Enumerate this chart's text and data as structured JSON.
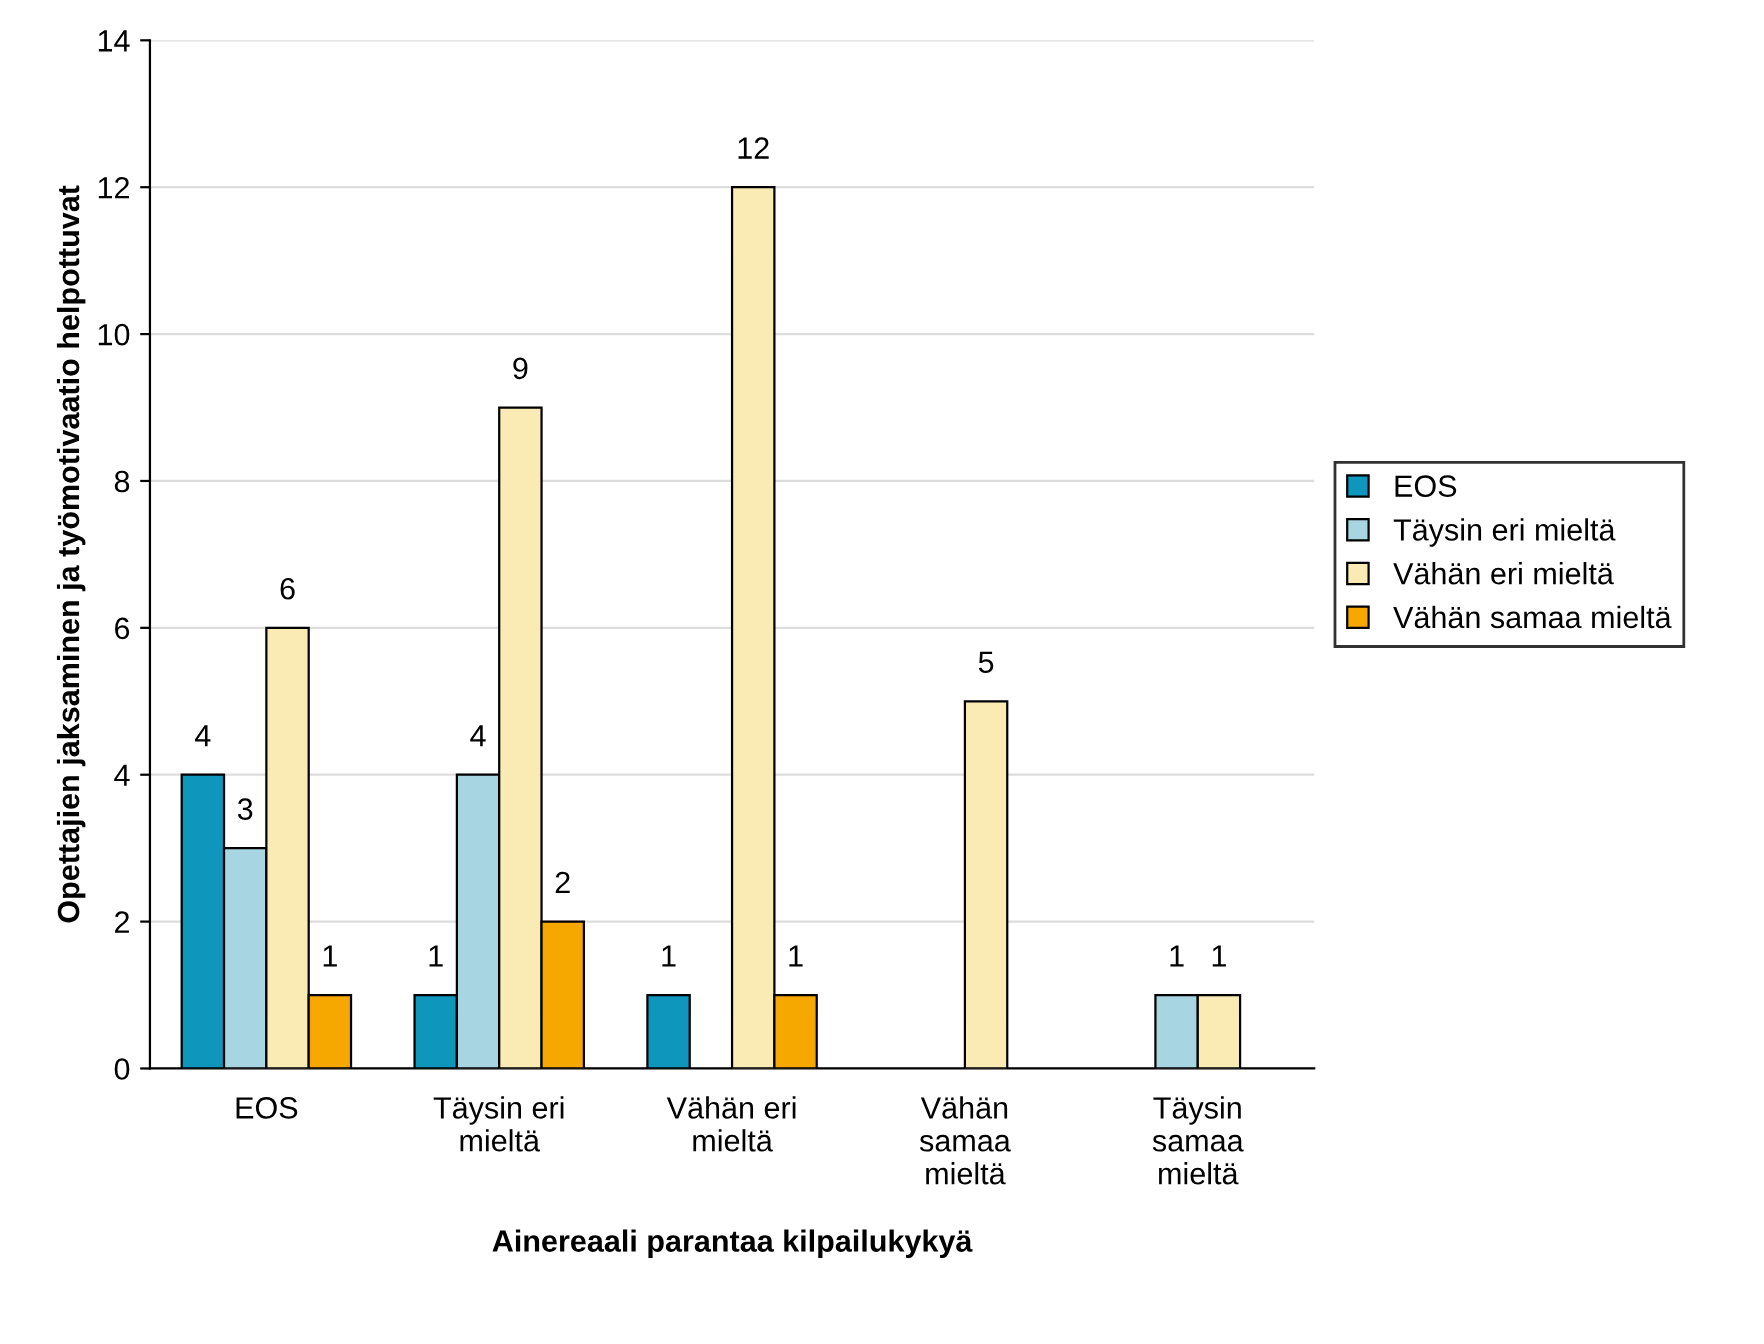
{
  "chart_data": {
    "type": "bar",
    "xlabel": "Ainereaali parantaa kilpailukykyä",
    "ylabel": "Opettajien jaksaminen ja työmotivaatio helpottuvat",
    "categories": [
      "EOS",
      "Täysin eri\nmieltä",
      "Vähän eri\nmieltä",
      "Vähän\nsamaa\nmieltä",
      "Täysin\nsamaa\nmieltä"
    ],
    "series": [
      {
        "name": "EOS",
        "color": "#0f96bd",
        "values": [
          4,
          1,
          1,
          null,
          null
        ]
      },
      {
        "name": "Täysin eri mieltä",
        "color": "#a8d5e2",
        "values": [
          3,
          4,
          null,
          null,
          1
        ]
      },
      {
        "name": "Vähän eri mieltä",
        "color": "#faebb4",
        "values": [
          6,
          9,
          12,
          5,
          1
        ]
      },
      {
        "name": "Vähän samaa mieltä",
        "color": "#f7a800",
        "values": [
          1,
          2,
          1,
          null,
          null
        ]
      }
    ],
    "ylim": [
      0,
      14
    ],
    "yticks": [
      0,
      2,
      4,
      6,
      8,
      10,
      12,
      14
    ],
    "grid": "y",
    "legend": "right",
    "data_labels": true
  }
}
